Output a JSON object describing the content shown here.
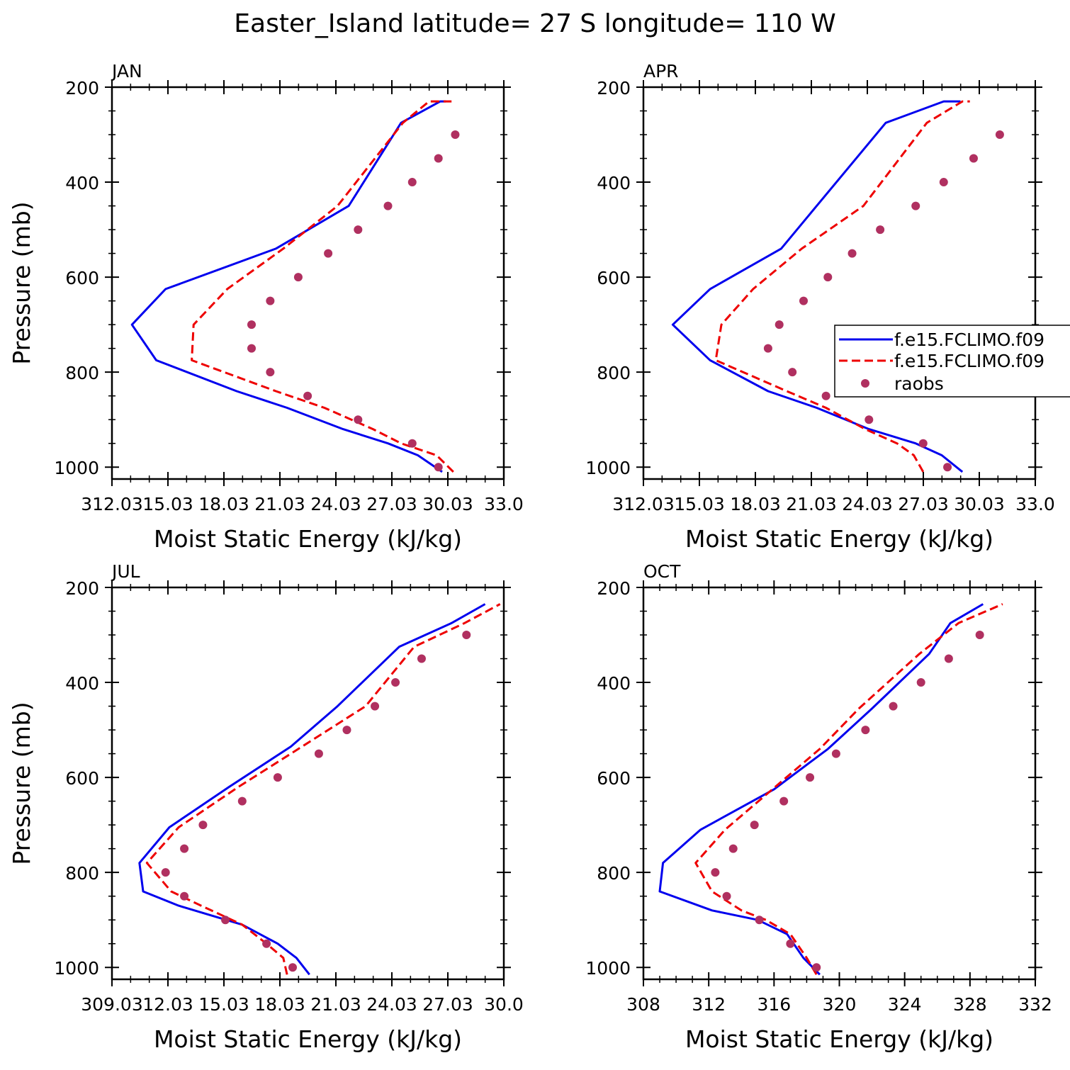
{
  "title": "Easter_Island  latitude= 27 S longitude= 110 W",
  "colors": {
    "model1": "#0000ee",
    "model2": "#ee0000",
    "raobs": "#b03060"
  },
  "legend": {
    "entries": [
      "f.e15.FCLIMO.f09",
      "f.e15.FCLIMO.f09",
      "raobs"
    ],
    "placement": "right of APR panel"
  },
  "chart_data": [
    {
      "type": "line",
      "panel_label": "JAN",
      "xlabel": "Moist Static Energy (kJ/kg)",
      "ylabel": "Pressure (mb)",
      "xlim": [
        312.03,
        333.0
      ],
      "ylim": [
        1000,
        200
      ],
      "y_inverted": true,
      "xticks": [
        "312.03",
        "15.03",
        "18.03",
        "21.03",
        "24.03",
        "27.03",
        "30.03",
        "33.0"
      ],
      "yticks": [
        "200",
        "400",
        "600",
        "800",
        "1000"
      ],
      "series": [
        {
          "kind": "solid",
          "x": [
            329.7,
            328.4,
            326.8,
            324.4,
            321.4,
            318.7,
            314.4,
            313.1,
            314.9,
            320.8,
            324.7,
            327.5,
            329.6,
            329.9
          ],
          "y": [
            1010,
            975,
            950,
            920,
            875,
            840,
            775,
            700,
            625,
            540,
            450,
            275,
            230,
            230
          ]
        },
        {
          "kind": "dashed",
          "x": [
            330.3,
            329.4,
            327.5,
            326.0,
            323.4,
            320.8,
            316.3,
            316.4,
            318.2,
            321.2,
            324.1,
            327.6,
            329.0,
            330.2
          ],
          "y": [
            1010,
            975,
            950,
            920,
            875,
            840,
            775,
            700,
            625,
            540,
            450,
            275,
            230,
            230
          ]
        },
        {
          "kind": "raobs",
          "x": [
            329.5,
            328.1,
            325.2,
            322.5,
            320.5,
            319.5,
            319.5,
            320.5,
            322.0,
            323.6,
            325.2,
            326.8,
            328.1,
            329.5,
            330.4
          ],
          "y": [
            1000,
            950,
            900,
            850,
            800,
            750,
            700,
            650,
            600,
            550,
            500,
            450,
            400,
            350,
            300
          ]
        }
      ]
    },
    {
      "type": "line",
      "panel_label": "APR",
      "xlabel": "Moist Static Energy (kJ/kg)",
      "ylabel": "",
      "xlim": [
        312.03,
        333.0
      ],
      "ylim": [
        1000,
        200
      ],
      "y_inverted": true,
      "xticks": [
        "312.03",
        "15.03",
        "18.03",
        "21.03",
        "24.03",
        "27.03",
        "30.03",
        "33.0"
      ],
      "yticks": [
        "200",
        "400",
        "600",
        "800",
        "1000"
      ],
      "series": [
        {
          "kind": "solid",
          "x": [
            329.1,
            328.0,
            326.6,
            324.1,
            321.3,
            318.7,
            315.6,
            313.6,
            315.6,
            319.4,
            321.3,
            325.0,
            328.1,
            329.0
          ],
          "y": [
            1010,
            975,
            950,
            920,
            875,
            840,
            775,
            700,
            625,
            540,
            450,
            275,
            230,
            230
          ]
        },
        {
          "kind": "dashed",
          "x": [
            327.0,
            326.5,
            325.6,
            323.9,
            321.8,
            319.7,
            315.9,
            316.2,
            317.9,
            320.5,
            323.8,
            327.2,
            329.1,
            329.5
          ],
          "y": [
            1010,
            975,
            950,
            920,
            875,
            840,
            775,
            700,
            625,
            540,
            450,
            275,
            230,
            230
          ]
        },
        {
          "kind": "raobs",
          "x": [
            328.3,
            327.0,
            324.1,
            321.8,
            320.0,
            318.7,
            319.3,
            320.6,
            321.9,
            323.2,
            324.7,
            326.6,
            328.1,
            329.7,
            331.1
          ],
          "y": [
            1000,
            950,
            900,
            850,
            800,
            750,
            700,
            650,
            600,
            550,
            500,
            450,
            400,
            350,
            300
          ]
        }
      ]
    },
    {
      "type": "line",
      "panel_label": "JUL",
      "xlabel": "Moist Static Energy (kJ/kg)",
      "ylabel": "Pressure (mb)",
      "xlim": [
        309.03,
        330.0
      ],
      "ylim": [
        1000,
        200
      ],
      "y_inverted": true,
      "xticks": [
        "309.03",
        "12.03",
        "15.03",
        "18.03",
        "21.03",
        "24.03",
        "27.03",
        "30.0"
      ],
      "yticks": [
        "200",
        "400",
        "600",
        "800",
        "1000"
      ],
      "series": [
        {
          "kind": "solid",
          "x": [
            319.6,
            318.9,
            317.9,
            316.0,
            312.6,
            310.7,
            310.5,
            312.1,
            315.3,
            318.6,
            321.1,
            324.4,
            327.2,
            329.0
          ],
          "y": [
            1015,
            980,
            950,
            910,
            870,
            840,
            780,
            705,
            620,
            535,
            450,
            325,
            275,
            235
          ]
        },
        {
          "kind": "dashed",
          "x": [
            318.4,
            318.2,
            317.3,
            316.0,
            313.8,
            312.2,
            310.9,
            312.6,
            315.8,
            319.2,
            322.6,
            325.2,
            327.9,
            329.8
          ],
          "y": [
            1015,
            980,
            950,
            910,
            870,
            840,
            780,
            705,
            620,
            535,
            450,
            325,
            275,
            235
          ]
        },
        {
          "kind": "raobs",
          "x": [
            318.7,
            317.3,
            315.1,
            312.9,
            311.9,
            312.9,
            313.9,
            316.0,
            317.9,
            320.1,
            321.6,
            323.1,
            324.2,
            325.6,
            328.0
          ],
          "y": [
            1000,
            950,
            900,
            850,
            800,
            750,
            700,
            650,
            600,
            550,
            500,
            450,
            400,
            350,
            300
          ]
        }
      ]
    },
    {
      "type": "line",
      "panel_label": "OCT",
      "xlabel": "Moist Static Energy (kJ/kg)",
      "ylabel": "",
      "xlim": [
        308,
        332
      ],
      "ylim": [
        1000,
        200
      ],
      "y_inverted": true,
      "xticks": [
        "308",
        "312",
        "316",
        "320",
        "324",
        "328",
        "332"
      ],
      "yticks": [
        "200",
        "400",
        "600",
        "800",
        "1000"
      ],
      "series": [
        {
          "kind": "solid",
          "x": [
            318.8,
            317.8,
            316.8,
            315.0,
            312.2,
            309.0,
            309.2,
            311.5,
            316.0,
            319.3,
            322.0,
            325.5,
            326.8,
            328.8
          ],
          "y": [
            1015,
            980,
            930,
            900,
            880,
            840,
            780,
            710,
            625,
            540,
            455,
            340,
            275,
            235
          ]
        },
        {
          "kind": "dashed",
          "x": [
            318.6,
            318.0,
            317.0,
            315.5,
            314.0,
            312.2,
            311.2,
            313.0,
            315.9,
            318.8,
            321.2,
            324.9,
            327.3,
            330.0
          ],
          "y": [
            1015,
            980,
            930,
            900,
            880,
            840,
            780,
            710,
            625,
            540,
            455,
            340,
            275,
            235
          ]
        },
        {
          "kind": "raobs",
          "x": [
            318.6,
            317.0,
            315.1,
            313.1,
            312.4,
            313.5,
            314.8,
            316.6,
            318.2,
            319.8,
            321.6,
            323.3,
            325.0,
            326.7,
            328.6
          ],
          "y": [
            1000,
            950,
            900,
            850,
            800,
            750,
            700,
            650,
            600,
            550,
            500,
            450,
            400,
            350,
            300
          ]
        }
      ]
    }
  ]
}
